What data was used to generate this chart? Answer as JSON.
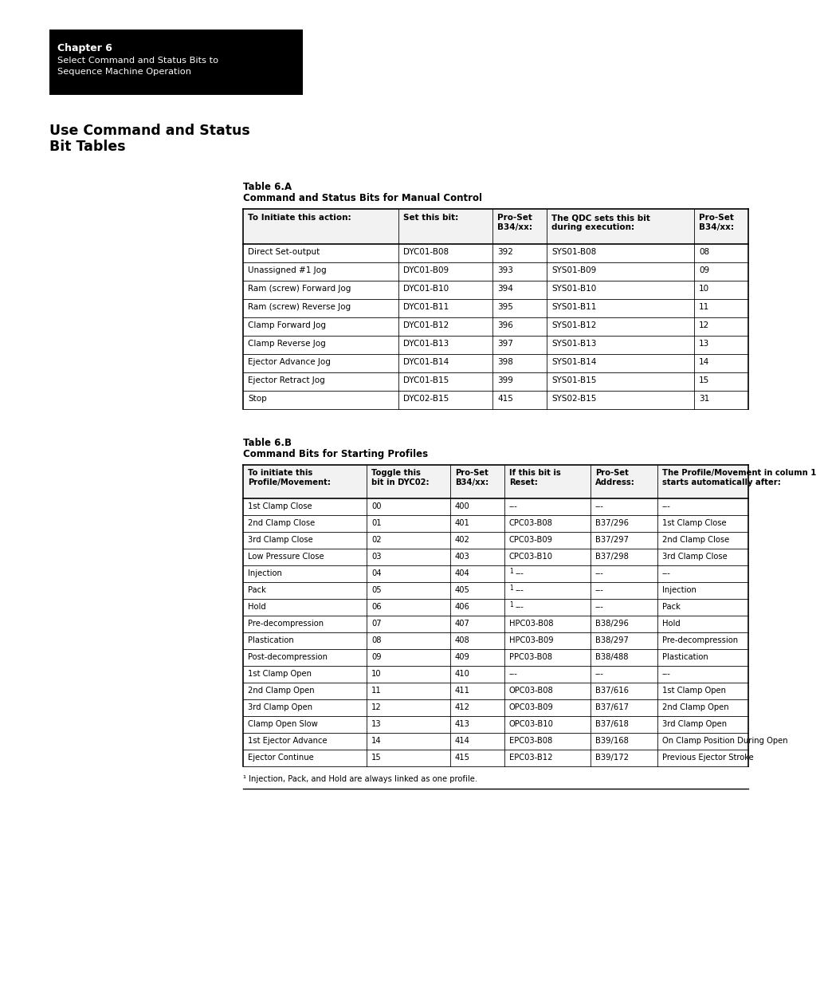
{
  "page_bg": "#ffffff",
  "chapter_box": {
    "title": "Chapter 6",
    "subtitle": "Select Command and Status Bits to\nSequence Machine Operation"
  },
  "section_title_line1": "Use Command and Status",
  "section_title_line2": "Bit Tables",
  "table_a": {
    "title_line1": "Table 6.A",
    "title_line2": "Command and Status Bits for Manual Control",
    "headers": [
      "To Initiate this action:",
      "Set this bit:",
      "Pro-Set\nB34/xx:",
      "The QDC sets this bit\nduring execution:",
      "Pro-Set\nB34/xx:"
    ],
    "rows": [
      [
        "Direct Set-output",
        "DYC01-B08",
        "392",
        "SYS01-B08",
        "08"
      ],
      [
        "Unassigned #1 Jog",
        "DYC01-B09",
        "393",
        "SYS01-B09",
        "09"
      ],
      [
        "Ram (screw) Forward Jog",
        "DYC01-B10",
        "394",
        "SYS01-B10",
        "10"
      ],
      [
        "Ram (screw) Reverse Jog",
        "DYC01-B11",
        "395",
        "SYS01-B11",
        "11"
      ],
      [
        "Clamp Forward Jog",
        "DYC01-B12",
        "396",
        "SYS01-B12",
        "12"
      ],
      [
        "Clamp Reverse Jog",
        "DYC01-B13",
        "397",
        "SYS01-B13",
        "13"
      ],
      [
        "Ejector Advance Jog",
        "DYC01-B14",
        "398",
        "SYS01-B14",
        "14"
      ],
      [
        "Ejector Retract Jog",
        "DYC01-B15",
        "399",
        "SYS01-B15",
        "15"
      ],
      [
        "Stop",
        "DYC02-B15",
        "415",
        "SYS02-B15",
        "31"
      ]
    ]
  },
  "table_b": {
    "title_line1": "Table 6.B",
    "title_line2": "Command Bits for Starting Profiles",
    "headers": [
      "To initiate this\nProfile/Movement:",
      "Toggle this\nbit in DYC02:",
      "Pro-Set\nB34/xx:",
      "If this bit is\nReset:",
      "Pro-Set\nAddress:",
      "The Profile/Movement in column 1\nstarts automatically after:"
    ],
    "rows": [
      [
        "1st Clamp Close",
        "00",
        "400",
        "---",
        "---",
        "---"
      ],
      [
        "2nd Clamp Close",
        "01",
        "401",
        "CPC03-B08",
        "B37/296",
        "1st Clamp Close"
      ],
      [
        "3rd Clamp Close",
        "02",
        "402",
        "CPC03-B09",
        "B37/297",
        "2nd Clamp Close"
      ],
      [
        "Low Pressure Close",
        "03",
        "403",
        "CPC03-B10",
        "B37/298",
        "3rd Clamp Close"
      ],
      [
        "Injection",
        "04",
        "404",
        "1 ---",
        "---",
        "---"
      ],
      [
        "Pack",
        "05",
        "405",
        "1 ---",
        "---",
        "Injection"
      ],
      [
        "Hold",
        "06",
        "406",
        "1 ---",
        "---",
        "Pack"
      ],
      [
        "Pre-decompression",
        "07",
        "407",
        "HPC03-B08",
        "B38/296",
        "Hold"
      ],
      [
        "Plastication",
        "08",
        "408",
        "HPC03-B09",
        "B38/297",
        "Pre-decompression"
      ],
      [
        "Post-decompression",
        "09",
        "409",
        "PPC03-B08",
        "B38/488",
        "Plastication"
      ],
      [
        "1st Clamp Open",
        "10",
        "410",
        "---",
        "---",
        "---"
      ],
      [
        "2nd Clamp Open",
        "11",
        "411",
        "OPC03-B08",
        "B37/616",
        "1st Clamp Open"
      ],
      [
        "3rd Clamp Open",
        "12",
        "412",
        "OPC03-B09",
        "B37/617",
        "2nd Clamp Open"
      ],
      [
        "Clamp Open Slow",
        "13",
        "413",
        "OPC03-B10",
        "B37/618",
        "3rd Clamp Open"
      ],
      [
        "1st Ejector Advance",
        "14",
        "414",
        "EPC03-B08",
        "B39/168",
        "On Clamp Position During Open"
      ],
      [
        "Ejector Continue",
        "15",
        "415",
        "EPC03-B12",
        "B39/172",
        "Previous Ejector Stroke"
      ]
    ],
    "footnote": "¹ Injection, Pack, and Hold are always linked as one profile."
  }
}
